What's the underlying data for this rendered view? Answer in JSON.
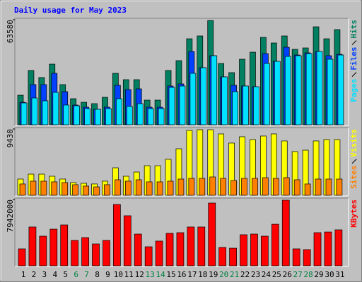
{
  "title": "Daily usage for May 2023",
  "weekend_color": "#008040",
  "weekend_indices": [
    5,
    6,
    12,
    13,
    19,
    20,
    26,
    27
  ],
  "chart_data": [
    {
      "type": "bar",
      "ylim": [
        0,
        63580
      ],
      "yticks": [
        63580
      ],
      "series": [
        {
          "name": "Hits",
          "color": "#008060",
          "values": [
            17900,
            32860,
            28590,
            36700,
            24320,
            15790,
            13650,
            12800,
            16640,
            31150,
            27310,
            27310,
            14930,
            14930,
            32860,
            38830,
            52060,
            53770,
            63150,
            37120,
            31580,
            39680,
            43950,
            52910,
            49500,
            53770,
            45660,
            46510,
            59310,
            52060,
            57610
          ]
        },
        {
          "name": "Files",
          "color": "#0040FF",
          "values": [
            13650,
            24320,
            24320,
            31150,
            20060,
            11950,
            10670,
            9390,
            10670,
            23900,
            21340,
            21760,
            10670,
            10670,
            23470,
            24750,
            44380,
            34560,
            41820,
            29020,
            23900,
            23470,
            23040,
            43100,
            38400,
            46940,
            42240,
            43530,
            44380,
            41820,
            42670
          ]
        },
        {
          "name": "Pages",
          "color": "#00E0FF",
          "values": [
            13230,
            16220,
            14510,
            19630,
            11950,
            11520,
            9810,
            9390,
            9810,
            15790,
            11100,
            12800,
            9810,
            9810,
            22620,
            23470,
            31150,
            34560,
            41820,
            29020,
            20060,
            23470,
            23040,
            37120,
            38400,
            41390,
            41820,
            43100,
            44380,
            39680,
            42240
          ]
        }
      ]
    },
    {
      "type": "bar",
      "ylim": [
        0,
        9430
      ],
      "yticks": [
        9430
      ],
      "series": [
        {
          "name": "Visits",
          "color": "#FFFF00",
          "values": [
            2310,
            3010,
            3010,
            2710,
            2310,
            1810,
            1710,
            1610,
            2010,
            3910,
            2710,
            3310,
            4210,
            4210,
            5120,
            6620,
            9230,
            9330,
            9330,
            8730,
            7430,
            8330,
            7930,
            8430,
            8730,
            7730,
            6220,
            6420,
            7730,
            7930,
            7930
          ]
        },
        {
          "name": "Sites",
          "color": "#FF8000",
          "values": [
            1610,
            2010,
            2010,
            1910,
            1810,
            1510,
            1310,
            1200,
            1510,
            2210,
            2010,
            2210,
            1910,
            1910,
            2010,
            2310,
            2410,
            2410,
            2610,
            2410,
            2110,
            2410,
            2410,
            2510,
            2410,
            2510,
            2210,
            1610,
            2310,
            2310,
            2310
          ]
        }
      ]
    },
    {
      "type": "bar",
      "ylim": [
        0,
        7942000
      ],
      "yticks": [
        7942000
      ],
      "categories": [
        "1",
        "2",
        "3",
        "4",
        "5",
        "6",
        "7",
        "8",
        "9",
        "10",
        "11",
        "12",
        "13",
        "14",
        "15",
        "16",
        "17",
        "18",
        "19",
        "20",
        "21",
        "22",
        "23",
        "24",
        "25",
        "26",
        "27",
        "28",
        "29",
        "30",
        "31"
      ],
      "series": [
        {
          "name": "KBytes",
          "color": "#FF0000",
          "values": [
            2030000,
            4650000,
            3550000,
            4390000,
            4900000,
            3040000,
            3380000,
            2620000,
            3040000,
            7350000,
            6000000,
            3800000,
            2280000,
            2960000,
            3890000,
            3970000,
            4650000,
            4650000,
            7520000,
            2200000,
            2110000,
            3720000,
            3800000,
            3550000,
            4980000,
            7860000,
            2030000,
            1940000,
            3970000,
            4050000,
            4310000
          ]
        }
      ]
    }
  ]
}
